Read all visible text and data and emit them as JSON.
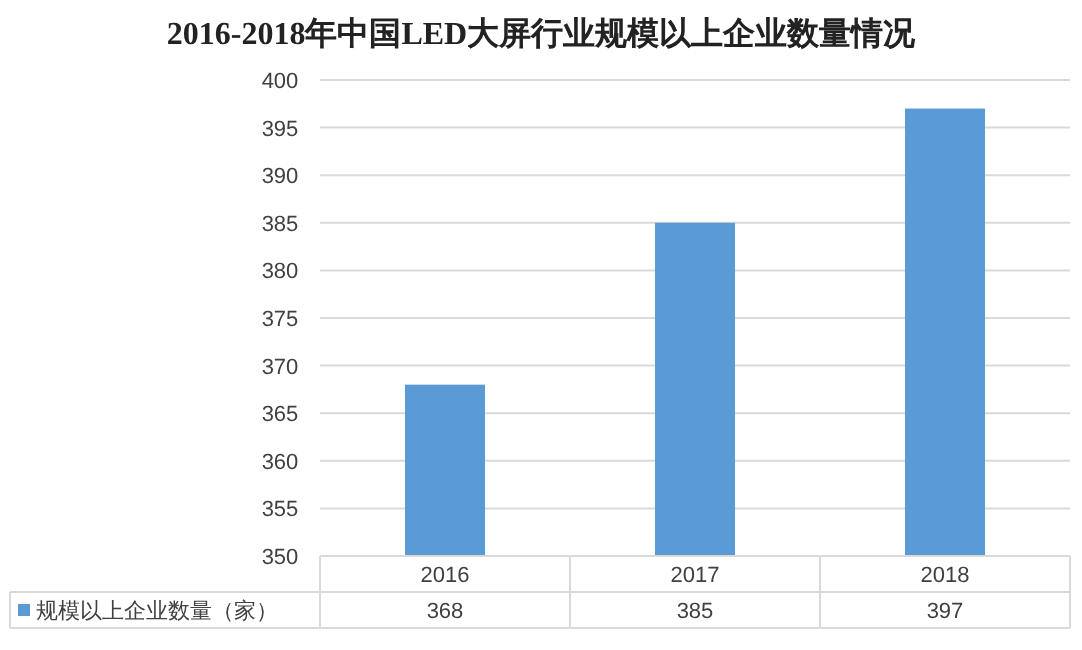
{
  "chart_data": {
    "type": "bar",
    "title": "2016-2018年中国LED大屏行业规模以上企业数量情况",
    "categories": [
      "2016",
      "2017",
      "2018"
    ],
    "series": [
      {
        "name": "规模以上企业数量（家）",
        "color": "#5b9bd5",
        "values": [
          368,
          385,
          397
        ]
      }
    ],
    "ylim": [
      350,
      400
    ],
    "yticks": [
      350,
      355,
      360,
      365,
      370,
      375,
      380,
      385,
      390,
      395,
      400
    ],
    "grid": "y",
    "legend": "bottom",
    "data_labels": true
  }
}
